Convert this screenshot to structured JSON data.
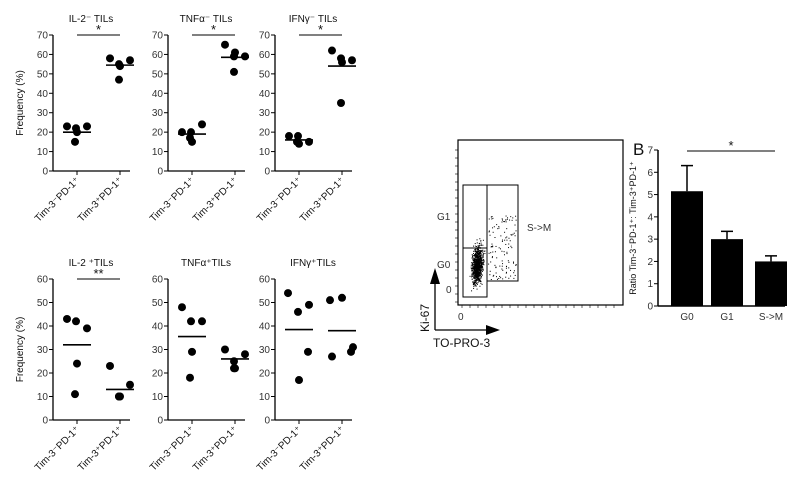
{
  "chart_data": [
    {
      "type": "scatter",
      "title": "IL-2⁻ TILs",
      "ylabel": "Frequency (%)",
      "ylim": [
        0,
        70
      ],
      "yticks": [
        0,
        10,
        20,
        30,
        40,
        50,
        60,
        70
      ],
      "categories": [
        "Tim-3⁻PD-1⁺",
        "Tim-3⁺PD-1⁺"
      ],
      "series": [
        {
          "values": [
            23,
            22,
            23,
            20,
            15
          ],
          "mean": 20
        },
        {
          "values": [
            58,
            57,
            55,
            54,
            47
          ],
          "mean": 54.5
        }
      ],
      "significance": "*"
    },
    {
      "type": "scatter",
      "title": "TNFα⁻ TILs",
      "ylabel": "",
      "ylim": [
        0,
        70
      ],
      "yticks": [
        0,
        10,
        20,
        30,
        40,
        50,
        60,
        70
      ],
      "categories": [
        "Tim-3⁻PD-1⁺",
        "Tim-3⁺PD-1⁺"
      ],
      "series": [
        {
          "values": [
            20,
            20,
            24,
            15,
            17
          ],
          "mean": 19
        },
        {
          "values": [
            65,
            59,
            59,
            61,
            51
          ],
          "mean": 58.5
        }
      ],
      "significance": "*"
    },
    {
      "type": "scatter",
      "title": "IFNγ⁻ TILs",
      "ylabel": "",
      "ylim": [
        0,
        70
      ],
      "yticks": [
        0,
        10,
        20,
        30,
        40,
        50,
        60,
        70
      ],
      "categories": [
        "Tim-3⁻PD-1⁺",
        "Tim-3⁺PD-1⁺"
      ],
      "series": [
        {
          "values": [
            18,
            18,
            15,
            14,
            15
          ],
          "mean": 16
        },
        {
          "values": [
            62,
            57,
            58,
            56,
            35
          ],
          "mean": 54
        }
      ],
      "significance": "*"
    },
    {
      "type": "scatter",
      "title": "IL-2 ⁺TILs",
      "ylabel": "Frequency (%)",
      "ylim": [
        0,
        60
      ],
      "yticks": [
        0,
        10,
        20,
        30,
        40,
        50,
        60
      ],
      "categories": [
        "Tim-3⁻PD-1⁺",
        "Tim-3⁺PD-1⁺"
      ],
      "series": [
        {
          "values": [
            43,
            42,
            39,
            24,
            11
          ],
          "mean": 32
        },
        {
          "values": [
            23,
            15,
            10,
            10,
            10
          ],
          "mean": 13
        }
      ],
      "significance": "**"
    },
    {
      "type": "scatter",
      "title": "TNFα⁺TILs",
      "ylabel": "",
      "ylim": [
        0,
        60
      ],
      "yticks": [
        0,
        10,
        20,
        30,
        40,
        50,
        60
      ],
      "categories": [
        "Tim-3⁻PD-1⁺",
        "Tim-3⁺PD-1⁺"
      ],
      "series": [
        {
          "values": [
            48,
            42,
            42,
            29,
            18
          ],
          "mean": 35.5
        },
        {
          "values": [
            30,
            28,
            25,
            22,
            22
          ],
          "mean": 26
        }
      ],
      "significance": ""
    },
    {
      "type": "scatter",
      "title": "IFNγ⁺TILs",
      "ylabel": "",
      "ylim": [
        0,
        60
      ],
      "yticks": [
        0,
        10,
        20,
        30,
        40,
        50,
        60
      ],
      "categories": [
        "Tim-3⁻PD-1⁺",
        "Tim-3⁺PD-1⁺"
      ],
      "series": [
        {
          "values": [
            54,
            46,
            49,
            29,
            17
          ],
          "mean": 38.5
        },
        {
          "values": [
            51,
            52,
            31,
            27,
            29
          ],
          "mean": 38
        }
      ],
      "significance": ""
    },
    {
      "type": "scatter",
      "subtype": "flow-cytometry",
      "xlabel": "TO-PRO-3",
      "ylabel": "Ki-67",
      "gates": [
        "G1",
        "G0",
        "S->M"
      ],
      "x_zero_label": "0",
      "y_zero_label": "0"
    },
    {
      "type": "bar",
      "panel_label": "B",
      "ylabel": "Ratio Tim-3⁻PD-1⁺: Tim-3⁺PD-1⁺",
      "ylim": [
        0,
        7
      ],
      "yticks": [
        0,
        1,
        2,
        3,
        4,
        5,
        6,
        7
      ],
      "categories": [
        "G0",
        "G1",
        "S->M"
      ],
      "values": [
        5.15,
        3.0,
        2.0
      ],
      "error_upper": [
        6.3,
        3.35,
        2.25
      ],
      "significance": "*",
      "bar_color": "#000000"
    }
  ]
}
